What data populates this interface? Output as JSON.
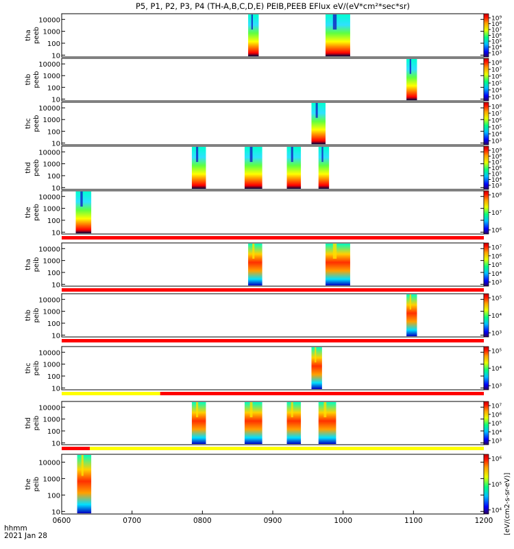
{
  "title": "P5, P1, P2, P3, P4 (TH-A,B,C,D,E) PEIB,PEEB EFlux eV/(eV*cm²*sec*sr)",
  "colorbar_unit_label": "[eV/(cm2-s-sr-eV)]",
  "time_axis": {
    "ticks": [
      "0600",
      "0700",
      "0800",
      "0900",
      "1000",
      "1100",
      "1200"
    ],
    "corner_label_1": "hhmm",
    "corner_label_2": "2021 Jan 28"
  },
  "chart_data": {
    "type": "heatmap",
    "x_range_hours": [
      6.0,
      12.0
    ],
    "y_scale": "log",
    "y_range_eV": [
      7,
      30000
    ],
    "y_ticks": [
      "10",
      "100",
      "1000",
      "10000"
    ],
    "panels": [
      {
        "label1": "tha",
        "label2": "peeb",
        "species": "e",
        "blocks": [
          [
            8.65,
            8.8
          ],
          [
            9.75,
            10.1
          ]
        ],
        "cb_ticks": [
          "10⁹",
          "10⁸",
          "10⁷",
          "10⁶",
          "10⁵",
          "10⁴",
          "10³"
        ],
        "flag_bar": null
      },
      {
        "label1": "thb",
        "label2": "peeb",
        "species": "e",
        "blocks": [
          [
            10.9,
            11.05
          ]
        ],
        "cb_ticks": [
          "10⁸",
          "10⁷",
          "10⁶",
          "10⁵",
          "10⁴",
          "10³"
        ],
        "flag_bar": null
      },
      {
        "label1": "thc",
        "label2": "peeb",
        "species": "e",
        "blocks": [
          [
            9.55,
            9.75
          ]
        ],
        "cb_ticks": [
          "10⁸",
          "10⁷",
          "10⁶",
          "10⁵",
          "10⁴",
          "10³"
        ],
        "flag_bar": null
      },
      {
        "label1": "thd",
        "label2": "peeb",
        "species": "e",
        "blocks": [
          [
            7.85,
            8.05
          ],
          [
            8.6,
            8.85
          ],
          [
            9.2,
            9.4
          ],
          [
            9.65,
            9.8
          ]
        ],
        "cb_ticks": [
          "10⁹",
          "10⁸",
          "10⁷",
          "10⁶",
          "10⁵",
          "10⁴",
          "10³"
        ],
        "flag_bar": null
      },
      {
        "label1": "the",
        "label2": "peeb",
        "species": "e",
        "blocks": [
          [
            6.2,
            6.42
          ]
        ],
        "cb_ticks": [
          "10⁸",
          "10⁷",
          "10⁶"
        ],
        "flag_bar": [
          {
            "from": 6.0,
            "to": 12.0,
            "color": "#ff0000"
          }
        ]
      },
      {
        "label1": "tha",
        "label2": "peib",
        "species": "i",
        "blocks": [
          [
            8.65,
            8.85
          ],
          [
            9.75,
            10.1
          ]
        ],
        "cb_ticks": [
          "10⁷",
          "10⁶",
          "10⁵",
          "10⁴",
          "10³"
        ],
        "flag_bar": [
          {
            "from": 6.0,
            "to": 12.0,
            "color": "#ff0000"
          }
        ]
      },
      {
        "label1": "thb",
        "label2": "peib",
        "species": "i",
        "blocks": [
          [
            10.9,
            11.05
          ]
        ],
        "cb_ticks": [
          "10⁵",
          "10⁴",
          "10³"
        ],
        "flag_bar": [
          {
            "from": 6.0,
            "to": 12.0,
            "color": "#ff0000"
          }
        ]
      },
      {
        "label1": "thc",
        "label2": "peib",
        "species": "i",
        "blocks": [
          [
            9.55,
            9.7
          ]
        ],
        "cb_ticks": [
          "10⁵",
          "10⁴",
          "10³"
        ],
        "flag_bar": [
          {
            "from": 6.0,
            "to": 7.4,
            "color": "#ffff00"
          },
          {
            "from": 7.4,
            "to": 12.0,
            "color": "#ff0000"
          }
        ]
      },
      {
        "label1": "thd",
        "label2": "peib",
        "species": "i",
        "blocks": [
          [
            7.85,
            8.05
          ],
          [
            8.6,
            8.85
          ],
          [
            9.2,
            9.4
          ],
          [
            9.65,
            9.9
          ]
        ],
        "cb_ticks": [
          "10⁷",
          "10⁶",
          "10⁵",
          "10⁴",
          "10³"
        ],
        "flag_bar": [
          {
            "from": 6.0,
            "to": 6.4,
            "color": "#ff0000"
          },
          {
            "from": 6.4,
            "to": 12.0,
            "color": "#ffff00"
          }
        ]
      },
      {
        "label1": "the",
        "label2": "peib",
        "species": "i",
        "blocks": [
          [
            6.22,
            6.42
          ]
        ],
        "cb_ticks": [
          "10⁶",
          "10⁵",
          "10⁴"
        ],
        "flag_bar": null
      }
    ]
  }
}
